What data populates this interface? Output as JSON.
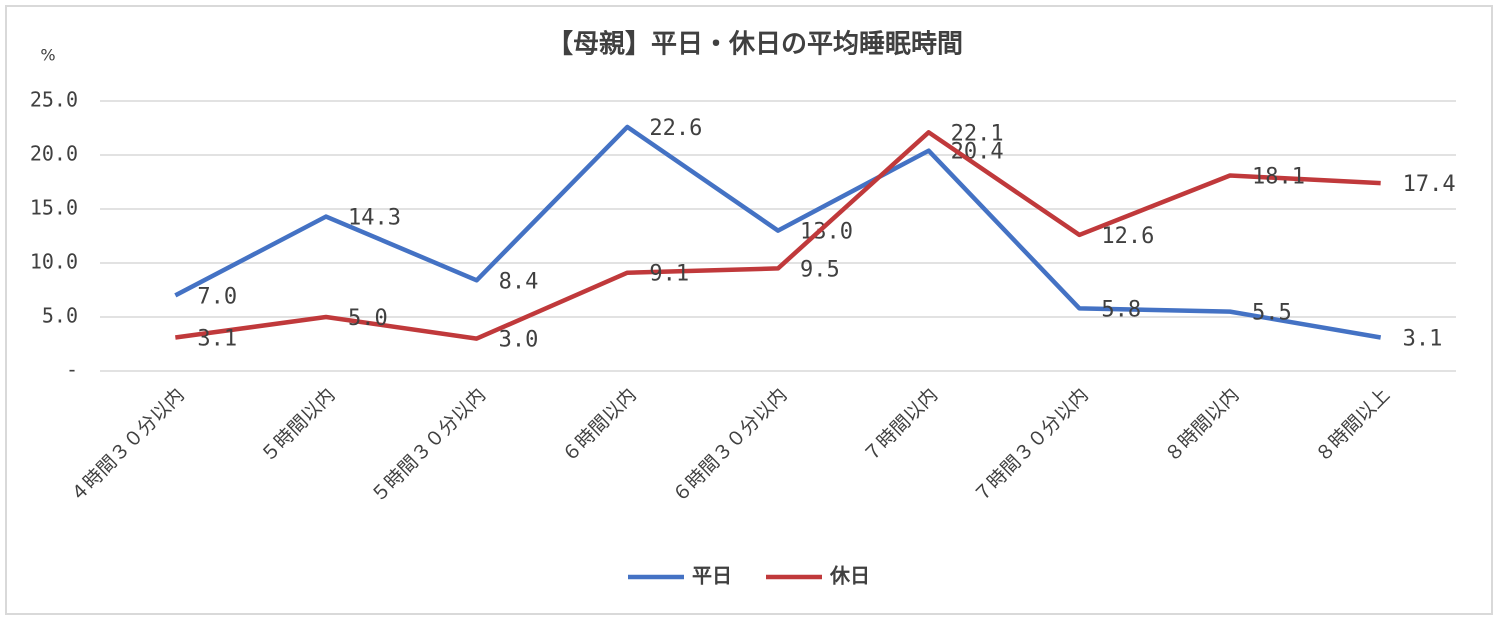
{
  "chart_data": {
    "type": "line",
    "title": "【母親】平日・休日の平均睡眠時間",
    "y_label": "%",
    "categories": [
      "４時間３０分以内",
      "５時間以内",
      "５時間３０分以内",
      "６時間以内",
      "６時間３０分以内",
      "７時間以内",
      "７時間３０分以内",
      "８時間以内",
      "８時間以上"
    ],
    "series": [
      {
        "name": "平日",
        "color": "#4472c4",
        "values": [
          7.0,
          14.3,
          8.4,
          22.6,
          13.0,
          20.4,
          5.8,
          5.5,
          3.1
        ],
        "value_labels": [
          "7.0",
          "14.3",
          "8.4",
          "22.6",
          "13.0",
          "20.4",
          "5.8",
          "5.5",
          "3.1"
        ]
      },
      {
        "name": "休日",
        "color": "#c0393b",
        "values": [
          3.1,
          5.0,
          3.0,
          9.1,
          9.5,
          22.1,
          12.6,
          18.1,
          17.4
        ],
        "value_labels": [
          "3.1",
          "5.0",
          "3.0",
          "9.1",
          "9.5",
          "22.1",
          "12.6",
          "18.1",
          "17.4"
        ]
      }
    ],
    "ylim": [
      0,
      25
    ],
    "yticks": [
      {
        "value": 0,
        "label": "-"
      },
      {
        "value": 5,
        "label": "5.0"
      },
      {
        "value": 10,
        "label": "10.0"
      },
      {
        "value": 15,
        "label": "15.0"
      },
      {
        "value": 20,
        "label": "20.0"
      },
      {
        "value": 25,
        "label": "25.0"
      }
    ],
    "grid": true,
    "legend": "bottom"
  }
}
